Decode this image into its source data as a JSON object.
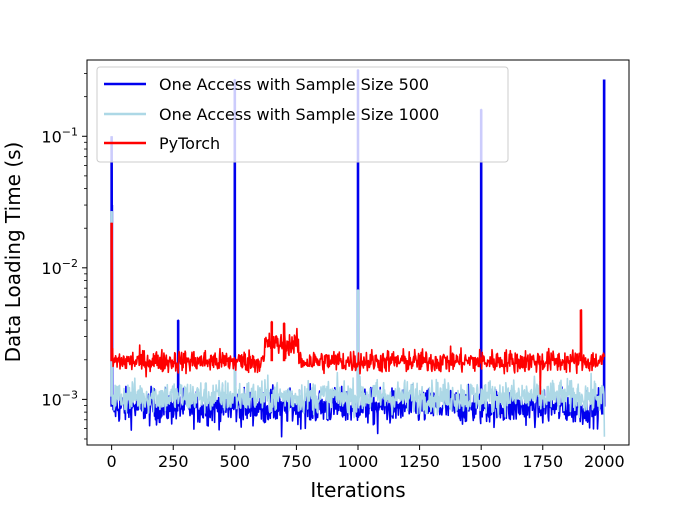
{
  "chart_data": {
    "type": "line",
    "title": "",
    "xlabel": "Iterations",
    "ylabel": "Data Loading Time (s)",
    "xlim": [
      -100,
      2100
    ],
    "ylim": [
      0.00045,
      0.38
    ],
    "yscale": "log",
    "grid": false,
    "legend_position": "top-left",
    "x_ticks": [
      0,
      250,
      500,
      750,
      1000,
      1250,
      1500,
      1750,
      2000
    ],
    "x_tick_labels": [
      "0",
      "250",
      "500",
      "750",
      "1000",
      "1250",
      "1500",
      "1750",
      "2000"
    ],
    "y_ticks": [
      0.001,
      0.01,
      0.1
    ],
    "y_tick_labels": [
      {
        "base": "10",
        "exp": "−3"
      },
      {
        "base": "10",
        "exp": "−2"
      },
      {
        "base": "10",
        "exp": "−1"
      }
    ],
    "series": [
      {
        "name": "One Access with Sample Size 500",
        "color": "#0000ee",
        "baseline": 0.00088,
        "noise": 0.14,
        "spikes": [
          {
            "x": 0,
            "y": 0.1
          },
          {
            "x": 1,
            "y": 0.03
          },
          {
            "x": 270,
            "y": 0.004
          },
          {
            "x": 500,
            "y": 0.27
          },
          {
            "x": 1000,
            "y": 0.32
          },
          {
            "x": 1500,
            "y": 0.16
          },
          {
            "x": 1999,
            "y": 0.27
          }
        ],
        "min_dips": [
          {
            "x": 690,
            "y": 0.00052
          },
          {
            "x": 1080,
            "y": 0.00055
          }
        ]
      },
      {
        "name": "One Access with Sample Size 1000",
        "color": "#add8e6",
        "baseline": 0.00105,
        "noise": 0.13,
        "spikes": [
          {
            "x": 0,
            "y": 0.027
          },
          {
            "x": 1000,
            "y": 0.0068
          },
          {
            "x": 500,
            "y": 0.0018
          }
        ],
        "min_dips": [
          {
            "x": 2000,
            "y": 0.00052
          }
        ]
      },
      {
        "name": "PyTorch",
        "color": "#ff0000",
        "baseline": 0.00195,
        "noise": 0.09,
        "spikes": [
          {
            "x": 0,
            "y": 0.022
          },
          {
            "x": 650,
            "y": 0.0039
          },
          {
            "x": 700,
            "y": 0.0038
          },
          {
            "x": 1905,
            "y": 0.0048
          }
        ],
        "min_dips": [
          {
            "x": 1740,
            "y": 0.0011
          }
        ]
      }
    ]
  }
}
